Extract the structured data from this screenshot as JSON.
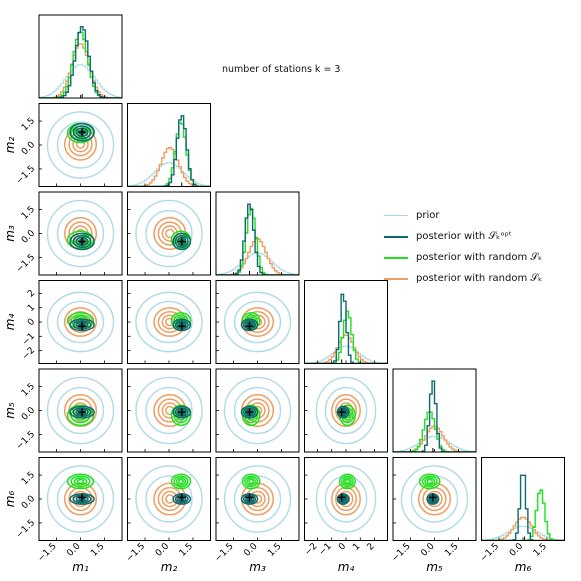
{
  "chart_data": {
    "type": "corner",
    "title": "number of stations k = 3",
    "parameters": [
      "m1",
      "m2",
      "m3",
      "m4",
      "m5",
      "m6"
    ],
    "axis_labels": [
      "m₁",
      "m₂",
      "m₃",
      "m₄",
      "m₅",
      "m₆"
    ],
    "ticks": {
      "default": [
        "−1.5",
        "0.0",
        "1.5"
      ],
      "m4": [
        "−2",
        "−1",
        "0",
        "1",
        "2"
      ]
    },
    "axis_limits": {
      "m1": [
        -2.6,
        2.6
      ],
      "m2": [
        -2.6,
        2.6
      ],
      "m3": [
        -2.6,
        2.6
      ],
      "m4": [
        -2.9,
        2.9
      ],
      "m5": [
        -2.6,
        2.6
      ],
      "m6": [
        -2.6,
        2.6
      ]
    },
    "true_values": [
      0.1,
      0.8,
      -0.5,
      -0.3,
      -0.1,
      0.1
    ],
    "legend_position": "right",
    "series": [
      {
        "name": "prior",
        "label": "prior",
        "color": "#a6d6e6",
        "mean": [
          0.0,
          0.0,
          0.0,
          0.0,
          0.0,
          0.0
        ],
        "sd": [
          0.9,
          0.9,
          0.9,
          0.9,
          0.9,
          0.9
        ]
      },
      {
        "name": "posterior-opt",
        "label": "posterior with 𝒮ₖᵒᵖᵗ",
        "color": "#0d6a6e",
        "mean": [
          0.1,
          0.8,
          -0.5,
          -0.2,
          -0.1,
          0.0
        ],
        "sd": [
          0.42,
          0.3,
          0.28,
          0.22,
          0.2,
          0.18
        ]
      },
      {
        "name": "posterior-random-1",
        "label": "posterior with random 𝒮ₖ",
        "color": "#1ee11e",
        "mean": [
          0.0,
          0.75,
          -0.4,
          0.1,
          -0.3,
          1.1
        ],
        "sd": [
          0.45,
          0.33,
          0.3,
          0.3,
          0.35,
          0.25
        ]
      },
      {
        "name": "posterior-random-2",
        "label": "posterior with random 𝒮ₖ",
        "color": "#ef9d60",
        "mean": [
          0.0,
          0.05,
          0.0,
          0.0,
          0.0,
          0.0
        ],
        "sd": [
          0.55,
          0.55,
          0.55,
          0.55,
          0.55,
          0.55
        ]
      }
    ]
  }
}
